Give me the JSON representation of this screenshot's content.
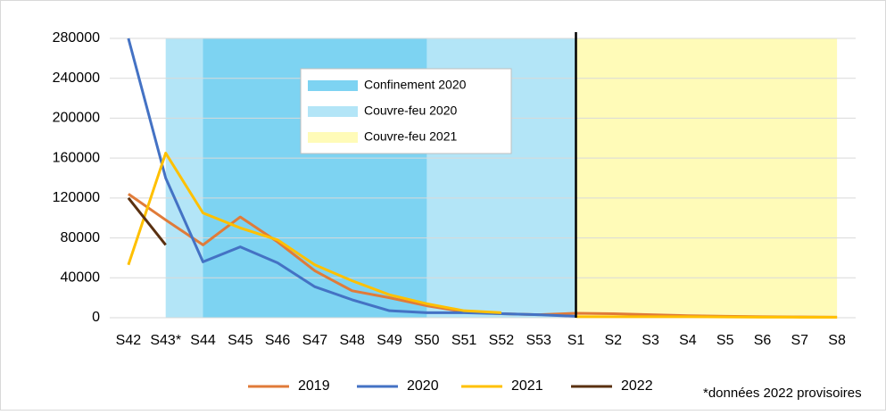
{
  "chart_data": {
    "type": "line",
    "categories": [
      "S42",
      "S43*",
      "S44",
      "S45",
      "S46",
      "S47",
      "S48",
      "S49",
      "S50",
      "S51",
      "S52",
      "S53",
      "S1",
      "S2",
      "S3",
      "S4",
      "S5",
      "S6",
      "S7",
      "S8"
    ],
    "series": [
      {
        "name": "2019",
        "color": "#e07b39",
        "values": [
          124000,
          98000,
          73000,
          101000,
          76000,
          47000,
          27000,
          20000,
          12000,
          6000,
          4000,
          3000,
          4500,
          4000,
          3000,
          2000,
          1500,
          1000,
          800,
          600
        ]
      },
      {
        "name": "2020",
        "color": "#4472c4",
        "values": [
          280000,
          140000,
          56000,
          71000,
          55000,
          31000,
          18000,
          7000,
          5000,
          5000,
          4000,
          3000,
          1500,
          null,
          null,
          null,
          null,
          null,
          null,
          null
        ]
      },
      {
        "name": "2021",
        "color": "#ffc000",
        "values": [
          53000,
          165000,
          105000,
          90000,
          78000,
          53000,
          37000,
          23000,
          14000,
          7000,
          5000,
          null,
          1000,
          1000,
          1000,
          1000,
          800,
          600,
          500,
          500
        ]
      },
      {
        "name": "2022",
        "color": "#5a3010",
        "values": [
          120000,
          73000,
          null,
          null,
          null,
          null,
          null,
          null,
          null,
          null,
          null,
          null,
          null,
          null,
          null,
          null,
          null,
          null,
          null,
          null
        ]
      }
    ],
    "bands": [
      {
        "name": "Confinement 2020",
        "color": "#7dd3f2",
        "start": "S44",
        "end": "S50"
      },
      {
        "name": "Couvre-feu 2020",
        "color": "#b3e5f7",
        "start": "S43*",
        "end": "S1"
      },
      {
        "name": "Couvre-feu 2021",
        "color": "#fffbb8",
        "start": "S1",
        "end": "S8"
      }
    ],
    "vline": "S1",
    "ylim": [
      0,
      280000
    ],
    "yticks": [
      0,
      40000,
      80000,
      120000,
      160000,
      200000,
      240000,
      280000
    ],
    "grid": true,
    "note": "*données 2022 provisoires"
  }
}
